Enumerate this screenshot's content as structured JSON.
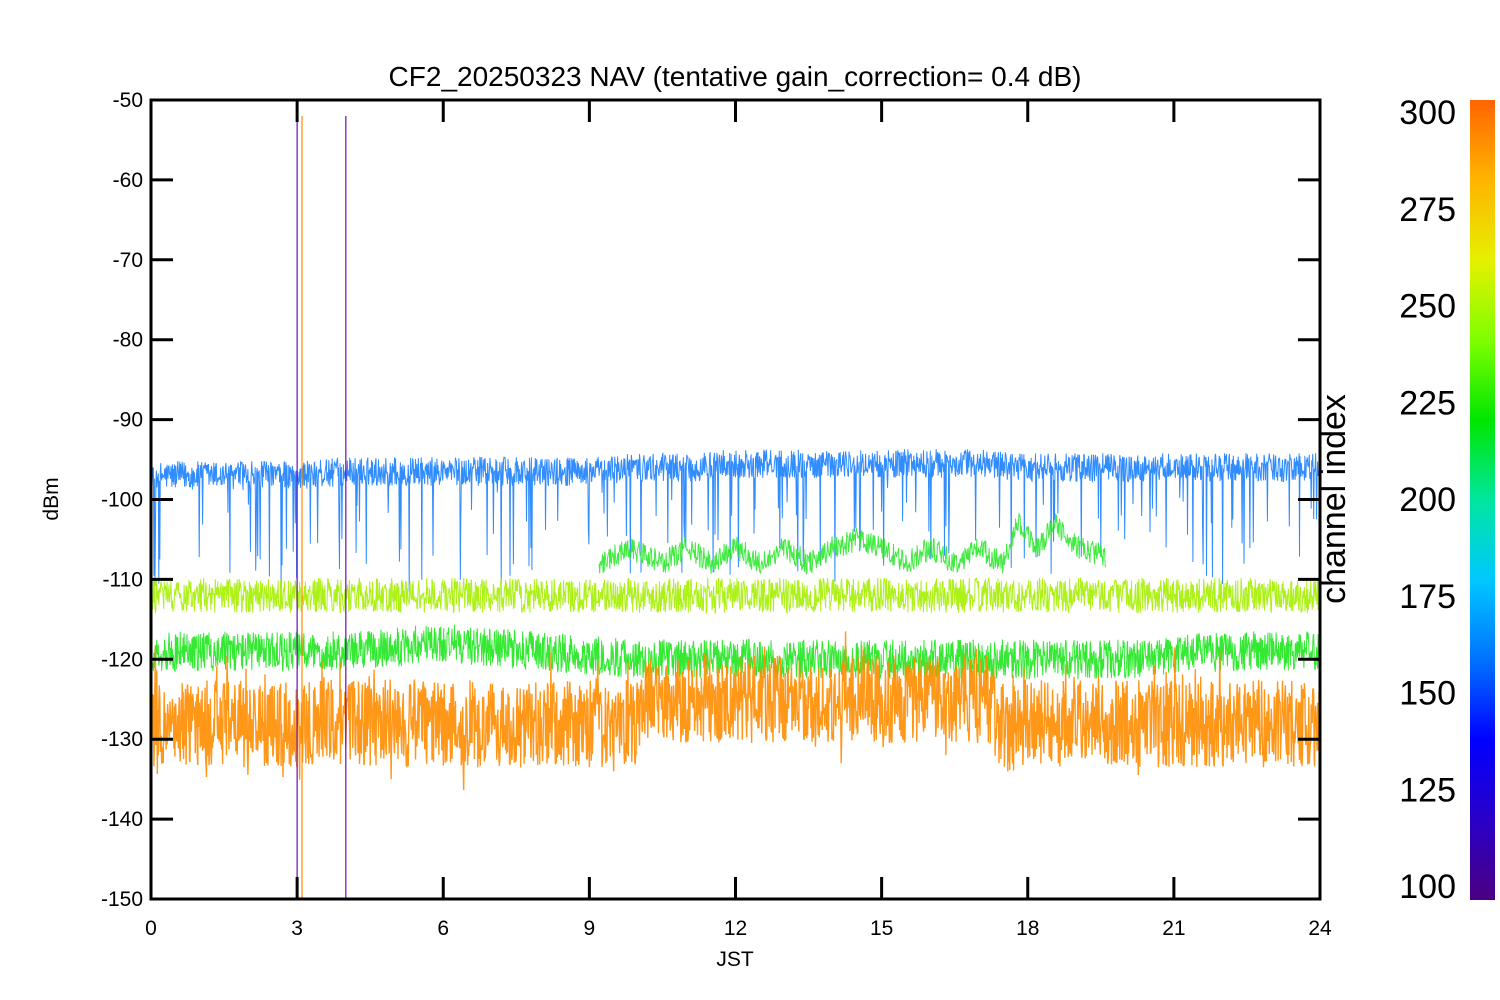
{
  "chart_data": {
    "type": "line",
    "title": "CF2_20250323 NAV (tentative gain_correction=  0.4 dB)",
    "xlabel": "JST",
    "ylabel": "dBm",
    "xlim": [
      0,
      24
    ],
    "ylim": [
      -150,
      -50
    ],
    "x_ticks": [
      0,
      3,
      6,
      9,
      12,
      15,
      18,
      21,
      24
    ],
    "y_ticks": [
      -50,
      -60,
      -70,
      -80,
      -90,
      -100,
      -110,
      -120,
      -130,
      -140,
      -150
    ],
    "grid": false,
    "colorbar": {
      "label": "channel index",
      "range": [
        100,
        300
      ],
      "ticks": [
        300,
        275,
        250,
        225,
        200,
        175,
        150,
        125,
        100
      ],
      "colormap": "rainbow",
      "stops": [
        "#4b0082",
        "#2a00c8",
        "#0000ff",
        "#0072ff",
        "#00c8ff",
        "#00e6a0",
        "#00e600",
        "#7fff00",
        "#e6f000",
        "#ffb400",
        "#ff6400"
      ]
    },
    "series": [
      {
        "channel": 150,
        "color": "#1a7fff",
        "mean": -96,
        "spread": 1.8,
        "x": [
          0,
          1,
          2,
          3,
          4,
          5,
          6,
          7,
          8,
          9,
          10,
          11,
          12,
          13,
          14,
          15,
          16,
          17,
          18,
          19,
          20,
          21,
          22,
          23,
          24
        ],
        "y": [
          -97,
          -97,
          -97,
          -97,
          -96.5,
          -96.5,
          -96.5,
          -96.5,
          -96.5,
          -96.5,
          -96,
          -96,
          -95.5,
          -95.5,
          -95.5,
          -95.5,
          -95.5,
          -95.5,
          -96,
          -96,
          -96,
          -96,
          -96,
          -96,
          -96
        ]
      },
      {
        "channel": 258,
        "color": "#a4f000",
        "mean": -112,
        "spread": 2.2,
        "x": [
          0,
          2,
          4,
          6,
          8,
          10,
          12,
          14,
          16,
          18,
          20,
          22,
          24
        ],
        "y": [
          -112,
          -112,
          -112,
          -112,
          -112,
          -112,
          -112,
          -112,
          -112,
          -112,
          -112,
          -112,
          -112
        ]
      },
      {
        "channel": 235,
        "color": "#1ee61e",
        "mean": -119,
        "spread": 2.5,
        "x": [
          0,
          2,
          4,
          6,
          8,
          10,
          12,
          14,
          16,
          18,
          20,
          22,
          24
        ],
        "y": [
          -119,
          -119,
          -119,
          -118,
          -119,
          -120,
          -120,
          -120,
          -120,
          -120,
          -120,
          -119,
          -119
        ]
      },
      {
        "channel": 228,
        "color": "#30e830",
        "mean": -107,
        "spread": 1.5,
        "segment": [
          9.2,
          19.6
        ],
        "x": [
          9.2,
          9.8,
          10.5,
          11,
          11.5,
          12,
          12.5,
          13,
          13.5,
          14,
          14.5,
          15,
          15.5,
          16,
          16.5,
          17,
          17.5,
          17.8,
          18.2,
          18.6,
          19,
          19.6
        ],
        "y": [
          -108,
          -106,
          -108,
          -106,
          -108,
          -106,
          -108,
          -106,
          -108,
          -106,
          -105,
          -106,
          -108,
          -106,
          -108,
          -106,
          -108,
          -103,
          -106,
          -103,
          -106,
          -107
        ]
      },
      {
        "channel": 300,
        "color": "#ff8c00",
        "mean": -128,
        "spread": 5.5,
        "x": [
          0,
          2,
          4,
          6,
          8,
          10,
          10.2,
          12,
          14,
          16,
          17.2,
          17.4,
          19,
          21,
          23,
          24
        ],
        "y": [
          -128,
          -128,
          -128,
          -128,
          -128,
          -128,
          -125,
          -125,
          -125,
          -125,
          -125,
          -128,
          -128,
          -128,
          -128,
          -128
        ]
      }
    ],
    "spikes": [
      {
        "x": 3.0,
        "color": "#6a0dad"
      },
      {
        "x": 4.0,
        "color": "#6a0dad"
      },
      {
        "x": 3.1,
        "color": "#ff8c00"
      }
    ]
  }
}
